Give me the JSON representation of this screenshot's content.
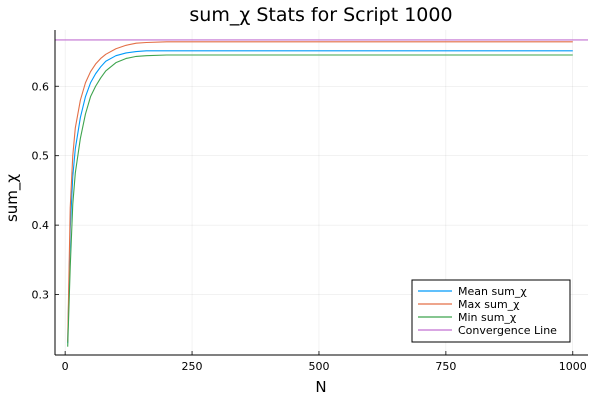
{
  "chart_data": {
    "type": "line",
    "title": "sum_χ Stats for Script 1000",
    "xlabel": "N",
    "ylabel": "sum_χ",
    "xlim": [
      -20,
      1030
    ],
    "ylim": [
      0.213,
      0.681
    ],
    "xticks": [
      0,
      250,
      500,
      750,
      1000
    ],
    "xtick_labels": [
      "0",
      "250",
      "500",
      "750",
      "1000"
    ],
    "yticks": [
      0.3,
      0.4,
      0.5,
      0.6
    ],
    "ytick_labels": [
      "0.3",
      "0.4",
      "0.5",
      "0.6"
    ],
    "grid": true,
    "legend_position": "bottom-right",
    "series": [
      {
        "name": "Mean sum_χ",
        "color": "#009AFA",
        "x": [
          5,
          10,
          15,
          20,
          30,
          40,
          50,
          60,
          70,
          80,
          100,
          120,
          140,
          160,
          200,
          300,
          500,
          700,
          1000
        ],
        "y": [
          0.23,
          0.395,
          0.47,
          0.51,
          0.555,
          0.585,
          0.605,
          0.618,
          0.628,
          0.636,
          0.644,
          0.648,
          0.65,
          0.651,
          0.651,
          0.651,
          0.651,
          0.651,
          0.651
        ]
      },
      {
        "name": "Max sum_χ",
        "color": "#E36F47",
        "x": [
          5,
          10,
          15,
          20,
          30,
          40,
          50,
          60,
          70,
          80,
          100,
          120,
          140,
          160,
          200,
          300,
          500,
          700,
          1000
        ],
        "y": [
          0.232,
          0.425,
          0.5,
          0.54,
          0.58,
          0.605,
          0.621,
          0.632,
          0.64,
          0.646,
          0.654,
          0.659,
          0.662,
          0.663,
          0.664,
          0.664,
          0.664,
          0.664,
          0.664
        ]
      },
      {
        "name": "Min sum_χ",
        "color": "#3EA44E",
        "x": [
          5,
          10,
          15,
          20,
          30,
          40,
          50,
          60,
          70,
          80,
          100,
          120,
          140,
          160,
          200,
          300,
          500,
          700,
          1000
        ],
        "y": [
          0.225,
          0.34,
          0.43,
          0.475,
          0.525,
          0.56,
          0.585,
          0.6,
          0.612,
          0.622,
          0.634,
          0.64,
          0.643,
          0.644,
          0.645,
          0.645,
          0.645,
          0.645,
          0.645
        ]
      },
      {
        "name": "Convergence Line",
        "color": "#C271D2",
        "x": [
          -20,
          1030
        ],
        "y": [
          0.6667,
          0.6667
        ]
      }
    ]
  }
}
